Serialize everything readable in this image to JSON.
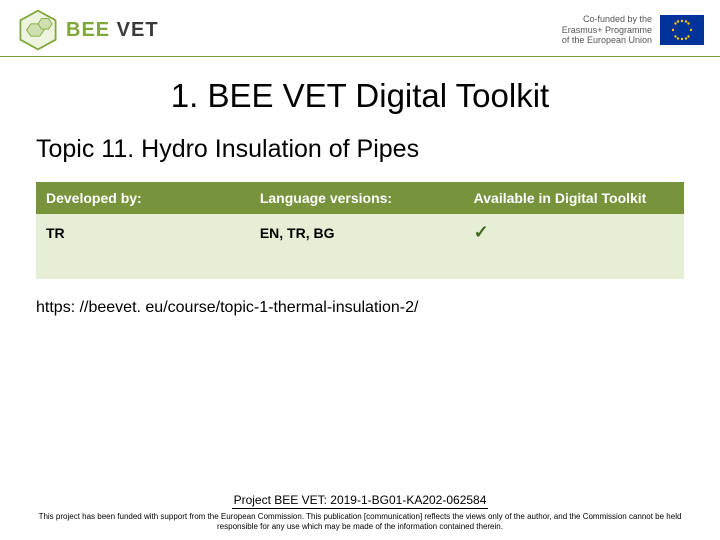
{
  "header": {
    "logo_bee": "BEE",
    "logo_vet": " VET",
    "eu_text": "Co-funded by the\nErasmus+ Programme\nof the European Union",
    "hex_stroke": "#7fa838",
    "hex_fill": "#eaf0d8"
  },
  "title": "1. BEE VET Digital Toolkit",
  "subtitle": "Topic 11. Hydro Insulation of Pipes",
  "table": {
    "header_bg": "#77933c",
    "row_bg": "#e6eed5",
    "columns": [
      "Developed by:",
      "Language versions:",
      "Available in Digital Toolkit"
    ],
    "rows": [
      [
        "TR",
        "EN, TR, BG",
        "✓"
      ]
    ],
    "col_widths": [
      "33%",
      "33%",
      "34%"
    ]
  },
  "url": "https: //beevet. eu/course/topic-1-thermal-insulation-2/",
  "footer": {
    "project": "Project BEE VET: 2019-1-BG01-KA202-062584",
    "disclaimer": "This project has been funded with support from the European Commission. This publication [communication] reflects the views only of the author, and the Commission cannot be held responsible for any use which may be made of the information contained therein."
  }
}
